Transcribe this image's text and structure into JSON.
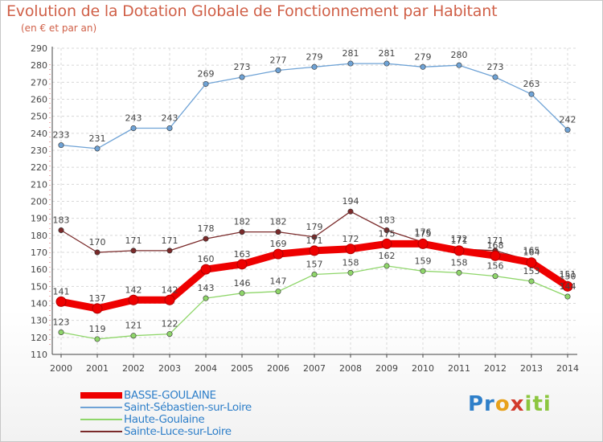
{
  "chart_data": {
    "type": "line",
    "title": "Evolution de la Dotation Globale de Fonctionnement par Habitant",
    "subtitle": "(en € et par an)",
    "xlabel": "",
    "ylabel": "",
    "ylim": [
      110,
      290
    ],
    "ytick_step": 10,
    "grid": true,
    "categories": [
      "2000",
      "2001",
      "2002",
      "2003",
      "2004",
      "2005",
      "2006",
      "2007",
      "2008",
      "2009",
      "2010",
      "2011",
      "2012",
      "2013",
      "2014"
    ],
    "series": [
      {
        "name": "Saint-Sébastien-sur-Loire",
        "color": "#6fa3d6",
        "values": [
          233,
          231,
          243,
          243,
          269,
          273,
          277,
          279,
          281,
          281,
          279,
          280,
          273,
          263,
          242
        ]
      },
      {
        "name": "Sainte-Luce-sur-Loire",
        "color": "#7a2a2a",
        "values": [
          183,
          170,
          171,
          171,
          178,
          182,
          182,
          179,
          194,
          183,
          176,
          172,
          171,
          165,
          151
        ]
      },
      {
        "name": "Haute-Goulaine",
        "color": "#8fd66a",
        "values": [
          123,
          119,
          121,
          122,
          143,
          146,
          147,
          157,
          158,
          162,
          159,
          158,
          156,
          153,
          144
        ]
      },
      {
        "name": "BASSE-GOULAINE",
        "color": "#ee0000",
        "values": [
          141,
          137,
          142,
          142,
          160,
          163,
          169,
          171,
          172,
          175,
          175,
          171,
          168,
          164,
          150
        ]
      }
    ],
    "data_labels": [
      [
        "233",
        "231",
        "243",
        "243",
        "269",
        "273",
        "277",
        "279",
        "281",
        "281",
        "279",
        "280",
        "273",
        "263",
        "242"
      ],
      [
        "183",
        "170",
        "171",
        "171",
        "178",
        "182",
        "182",
        "179",
        "194",
        "183",
        "176",
        "172",
        "171",
        "165",
        "151"
      ],
      [
        "123",
        "119",
        "121",
        "122",
        "143",
        "146",
        "147",
        "157",
        "158",
        "162",
        "159",
        "158",
        "156",
        "153",
        "144"
      ],
      [
        "141",
        "137",
        "142",
        "142",
        "160",
        "163",
        "169",
        "171",
        "172",
        "175",
        "175",
        "171",
        "168",
        "164",
        "150"
      ]
    ],
    "legend": {
      "position": "bottom-left",
      "entries": [
        "BASSE-GOULAINE",
        "Saint-Sébastien-sur-Loire",
        "Haute-Goulaine",
        "Sainte-Luce-sur-Loire"
      ],
      "colors": [
        "#ee0000",
        "#6fa3d6",
        "#8fd66a",
        "#7a2a2a"
      ]
    }
  },
  "logo": {
    "parts": [
      "Pr",
      "o",
      "x",
      "iti"
    ]
  }
}
